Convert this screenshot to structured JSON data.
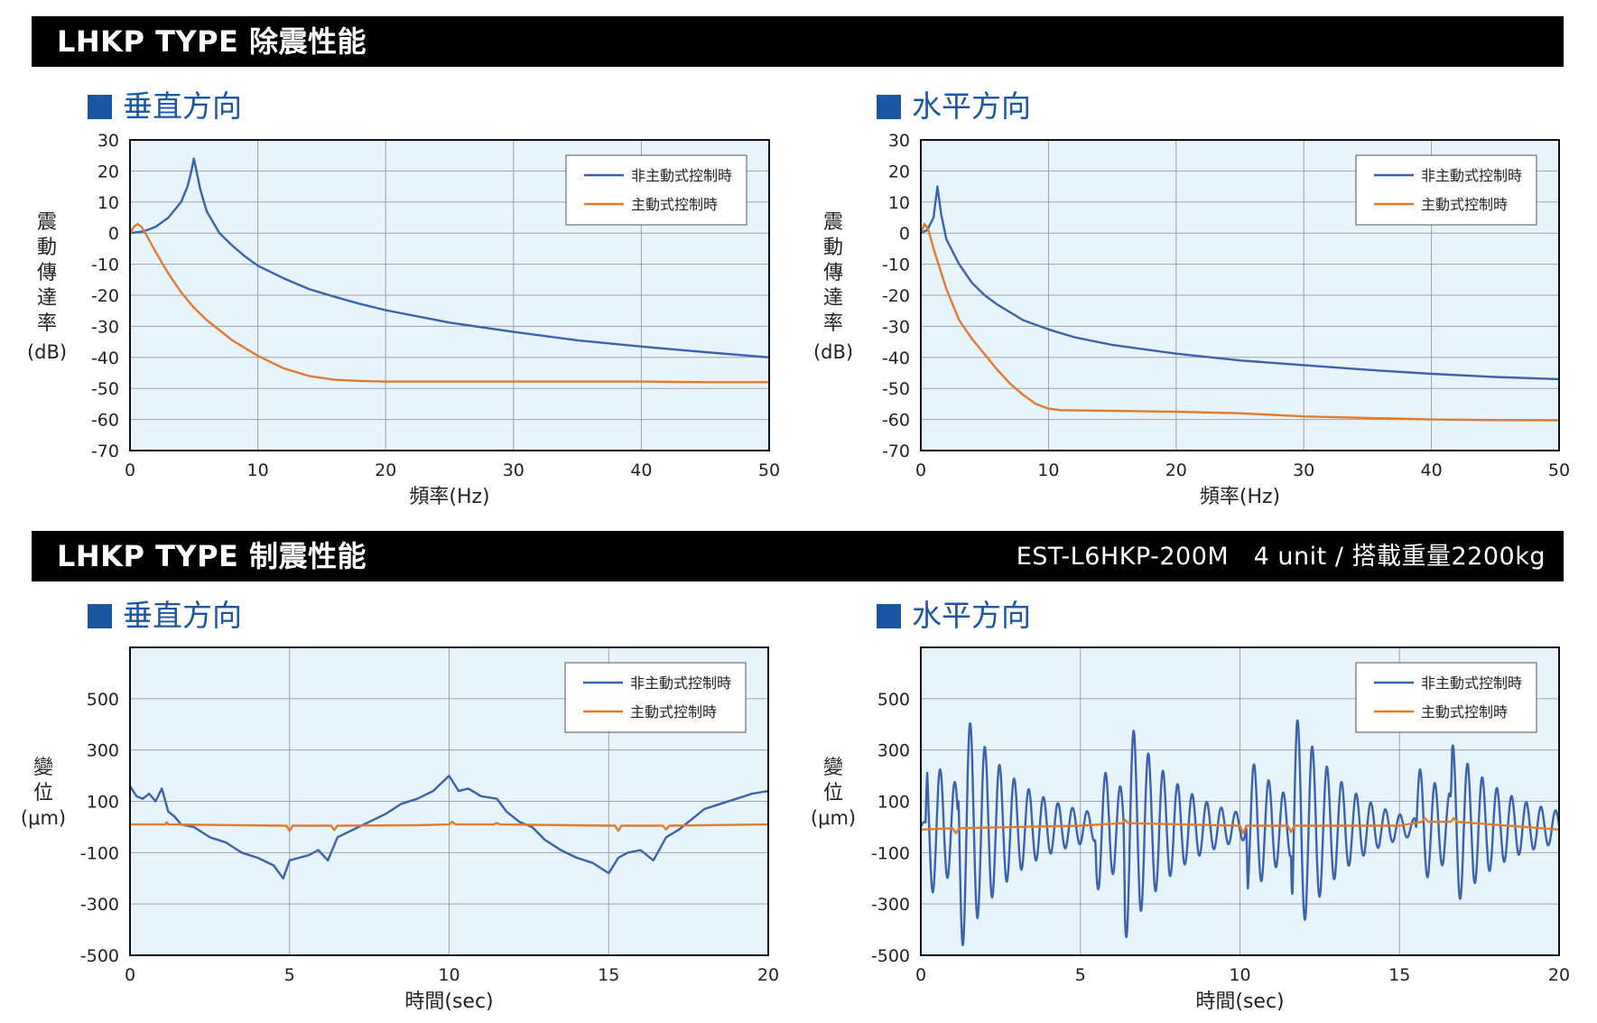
{
  "header1": {
    "title": "LHKP TYPE 除震性能"
  },
  "header2": {
    "title": "LHKP TYPE 制震性能",
    "spec": "EST-L6HKP-200M　4 unit / 搭載重量2200kg"
  },
  "subtitles": {
    "vertical": "垂直方向",
    "horizontal": "水平方向"
  },
  "colors": {
    "passive": "#3a62ad",
    "active": "#e07b30",
    "plot_bg": "#e8f4fb",
    "grid": "#9aa3aa",
    "accent": "#1a56a4"
  },
  "chart_data": [
    {
      "id": "isolation-vertical",
      "type": "line",
      "subtitle": "垂直方向",
      "xlabel": "頻率(Hz)",
      "ylabel_chars": [
        "震",
        "動",
        "傳",
        "達",
        "率"
      ],
      "ylabel_unit": "(dB)",
      "xlim": [
        0,
        50
      ],
      "ylim": [
        -70,
        30
      ],
      "xticks": [
        0,
        10,
        20,
        30,
        40,
        50
      ],
      "yticks": [
        30,
        20,
        10,
        0,
        -10,
        -20,
        -30,
        -40,
        -50,
        -60,
        -70
      ],
      "grid": true,
      "legend": "top-right",
      "series": [
        {
          "name": "非主動式控制時",
          "color": "#3a62ad",
          "points": [
            [
              0,
              0
            ],
            [
              1,
              0.5
            ],
            [
              2,
              2
            ],
            [
              3,
              5
            ],
            [
              4,
              10
            ],
            [
              4.5,
              15
            ],
            [
              4.8,
              20
            ],
            [
              5,
              24
            ],
            [
              5.2,
              20
            ],
            [
              5.5,
              14
            ],
            [
              6,
              7
            ],
            [
              7,
              0
            ],
            [
              8,
              -4
            ],
            [
              9,
              -7.5
            ],
            [
              10,
              -10.5
            ],
            [
              12,
              -14.5
            ],
            [
              14,
              -18
            ],
            [
              16,
              -20.5
            ],
            [
              18,
              -22.8
            ],
            [
              20,
              -24.8
            ],
            [
              25,
              -28.8
            ],
            [
              30,
              -31.8
            ],
            [
              35,
              -34.5
            ],
            [
              40,
              -36.5
            ],
            [
              45,
              -38.3
            ],
            [
              50,
              -40
            ]
          ]
        },
        {
          "name": "主動式控制時",
          "color": "#e07b30",
          "points": [
            [
              0,
              0
            ],
            [
              0.3,
              2
            ],
            [
              0.6,
              3
            ],
            [
              0.9,
              2
            ],
            [
              1.2,
              0
            ],
            [
              2,
              -6
            ],
            [
              3,
              -13
            ],
            [
              4,
              -19
            ],
            [
              5,
              -24
            ],
            [
              6,
              -28
            ],
            [
              8,
              -34.5
            ],
            [
              10,
              -39.5
            ],
            [
              12,
              -43.5
            ],
            [
              14,
              -46
            ],
            [
              16,
              -47.2
            ],
            [
              18,
              -47.6
            ],
            [
              20,
              -47.8
            ],
            [
              30,
              -47.8
            ],
            [
              40,
              -47.8
            ],
            [
              45,
              -48
            ],
            [
              50,
              -48
            ]
          ]
        }
      ]
    },
    {
      "id": "isolation-horizontal",
      "type": "line",
      "subtitle": "水平方向",
      "xlabel": "頻率(Hz)",
      "ylabel_chars": [
        "震",
        "動",
        "傳",
        "達",
        "率"
      ],
      "ylabel_unit": "(dB)",
      "xlim": [
        0,
        50
      ],
      "ylim": [
        -70,
        30
      ],
      "xticks": [
        0,
        10,
        20,
        30,
        40,
        50
      ],
      "yticks": [
        30,
        20,
        10,
        0,
        -10,
        -20,
        -30,
        -40,
        -50,
        -60,
        -70
      ],
      "grid": true,
      "legend": "top-right",
      "series": [
        {
          "name": "非主動式控制時",
          "color": "#3a62ad",
          "points": [
            [
              0,
              0
            ],
            [
              0.5,
              1
            ],
            [
              1,
              5
            ],
            [
              1.3,
              15
            ],
            [
              1.6,
              6
            ],
            [
              2,
              -2
            ],
            [
              3,
              -10
            ],
            [
              4,
              -16
            ],
            [
              5,
              -20
            ],
            [
              6,
              -23
            ],
            [
              7,
              -25.5
            ],
            [
              8,
              -28
            ],
            [
              10,
              -31
            ],
            [
              12,
              -33.5
            ],
            [
              15,
              -36
            ],
            [
              20,
              -38.8
            ],
            [
              25,
              -41
            ],
            [
              30,
              -42.5
            ],
            [
              35,
              -44
            ],
            [
              40,
              -45.3
            ],
            [
              45,
              -46.3
            ],
            [
              50,
              -47
            ]
          ]
        },
        {
          "name": "主動式控制時",
          "color": "#e07b30",
          "points": [
            [
              0,
              0
            ],
            [
              0.3,
              3
            ],
            [
              0.6,
              1
            ],
            [
              1,
              -5
            ],
            [
              2,
              -18
            ],
            [
              3,
              -28
            ],
            [
              4,
              -34
            ],
            [
              5,
              -39
            ],
            [
              6,
              -44
            ],
            [
              7,
              -48.5
            ],
            [
              8,
              -52
            ],
            [
              9,
              -55
            ],
            [
              10,
              -56.5
            ],
            [
              11,
              -57
            ],
            [
              15,
              -57.2
            ],
            [
              20,
              -57.5
            ],
            [
              25,
              -58
            ],
            [
              30,
              -59
            ],
            [
              35,
              -59.5
            ],
            [
              40,
              -60
            ],
            [
              45,
              -60.2
            ],
            [
              50,
              -60.3
            ]
          ]
        }
      ]
    },
    {
      "id": "damping-vertical",
      "type": "line",
      "subtitle": "垂直方向",
      "xlabel": "時間(sec)",
      "ylabel_chars": [
        "變",
        "位"
      ],
      "ylabel_unit": "(μm)",
      "xlim": [
        0,
        20
      ],
      "ylim": [
        -500,
        700
      ],
      "xticks": [
        0,
        5,
        10,
        15,
        20
      ],
      "yticks": [
        500,
        300,
        100,
        -100,
        -300,
        -500
      ],
      "grid": true,
      "legend": "top-right",
      "series": [
        {
          "name": "非主動式控制時",
          "color": "#3a62ad",
          "points": [
            [
              0,
              160
            ],
            [
              0.2,
              120
            ],
            [
              0.4,
              110
            ],
            [
              0.6,
              130
            ],
            [
              0.8,
              100
            ],
            [
              1,
              150
            ],
            [
              1.2,
              60
            ],
            [
              1.4,
              40
            ],
            [
              1.6,
              10
            ],
            [
              2,
              0
            ],
            [
              2.5,
              -40
            ],
            [
              3,
              -60
            ],
            [
              3.5,
              -100
            ],
            [
              4,
              -120
            ],
            [
              4.5,
              -150
            ],
            [
              4.8,
              -200
            ],
            [
              5,
              -130
            ],
            [
              5.3,
              -120
            ],
            [
              5.6,
              -110
            ],
            [
              5.9,
              -90
            ],
            [
              6.2,
              -130
            ],
            [
              6.5,
              -40
            ],
            [
              7,
              -10
            ],
            [
              7.5,
              20
            ],
            [
              8,
              50
            ],
            [
              8.5,
              90
            ],
            [
              9,
              110
            ],
            [
              9.5,
              140
            ],
            [
              10,
              200
            ],
            [
              10.3,
              140
            ],
            [
              10.6,
              150
            ],
            [
              11,
              120
            ],
            [
              11.5,
              110
            ],
            [
              11.8,
              60
            ],
            [
              12.2,
              20
            ],
            [
              12.6,
              0
            ],
            [
              13,
              -50
            ],
            [
              13.5,
              -90
            ],
            [
              14,
              -120
            ],
            [
              14.5,
              -140
            ],
            [
              15,
              -180
            ],
            [
              15.3,
              -120
            ],
            [
              15.6,
              -100
            ],
            [
              16,
              -90
            ],
            [
              16.4,
              -130
            ],
            [
              16.8,
              -40
            ],
            [
              17.2,
              -10
            ],
            [
              17.6,
              30
            ],
            [
              18,
              70
            ],
            [
              18.5,
              90
            ],
            [
              19,
              110
            ],
            [
              19.5,
              130
            ],
            [
              20,
              140
            ]
          ]
        },
        {
          "name": "主動式控制時",
          "color": "#e07b30",
          "points": [
            [
              0,
              10
            ],
            [
              1.1,
              10
            ],
            [
              1.15,
              18
            ],
            [
              1.2,
              10
            ],
            [
              4.9,
              5
            ],
            [
              5,
              -15
            ],
            [
              5.1,
              5
            ],
            [
              6.3,
              5
            ],
            [
              6.4,
              -12
            ],
            [
              6.5,
              5
            ],
            [
              9,
              7
            ],
            [
              10,
              10
            ],
            [
              10.1,
              20
            ],
            [
              10.2,
              10
            ],
            [
              11.4,
              10
            ],
            [
              11.5,
              16
            ],
            [
              11.6,
              10
            ],
            [
              15.2,
              5
            ],
            [
              15.3,
              -15
            ],
            [
              15.4,
              5
            ],
            [
              16.7,
              5
            ],
            [
              16.8,
              -10
            ],
            [
              16.9,
              5
            ],
            [
              20,
              10
            ]
          ]
        }
      ]
    },
    {
      "id": "damping-horizontal",
      "type": "line",
      "subtitle": "水平方向",
      "xlabel": "時間(sec)",
      "ylabel_chars": [
        "變",
        "位"
      ],
      "ylabel_unit": "(μm)",
      "xlim": [
        0,
        20
      ],
      "ylim": [
        -500,
        700
      ],
      "xticks": [
        0,
        5,
        10,
        15,
        20
      ],
      "yticks": [
        500,
        300,
        100,
        -100,
        -300,
        -500
      ],
      "grid": true,
      "legend": "top-right",
      "series": [
        {
          "name": "非主動式控制時",
          "color": "#3a62ad",
          "kind": "burst",
          "period": 0.46,
          "bursts": [
            [
              0.15,
              270
            ],
            [
              1.15,
              350
            ],
            [
              5.45,
              270
            ],
            [
              6.35,
              330
            ],
            [
              10.2,
              290
            ],
            [
              11.6,
              360
            ],
            [
              15.5,
              270
            ],
            [
              16.6,
              330
            ]
          ],
          "decay": 1.7,
          "phase": 0
        },
        {
          "name": "主動式控制時",
          "color": "#e07b30",
          "points": [
            [
              0,
              -10
            ],
            [
              1,
              -5
            ],
            [
              1.1,
              -25
            ],
            [
              1.2,
              -5
            ],
            [
              5,
              5
            ],
            [
              6.3,
              15
            ],
            [
              6.4,
              28
            ],
            [
              6.5,
              15
            ],
            [
              10,
              5
            ],
            [
              10.1,
              -25
            ],
            [
              10.2,
              5
            ],
            [
              11.5,
              5
            ],
            [
              11.6,
              -20
            ],
            [
              11.7,
              5
            ],
            [
              15,
              5
            ],
            [
              15.7,
              20
            ],
            [
              15.8,
              35
            ],
            [
              15.9,
              20
            ],
            [
              16.6,
              20
            ],
            [
              16.7,
              35
            ],
            [
              16.8,
              20
            ],
            [
              20,
              -10
            ]
          ]
        }
      ]
    }
  ]
}
